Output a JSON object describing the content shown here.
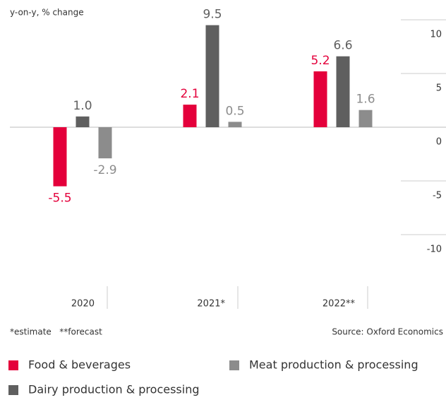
{
  "chart_data": {
    "type": "bar",
    "y_axis_label": "y-on-y, % change",
    "categories": [
      "2020",
      "2021*",
      "2022**"
    ],
    "series": [
      {
        "name": "Food & beverages",
        "color": "#e4003b",
        "values": [
          -5.5,
          2.1,
          5.2
        ],
        "value_labels": [
          "-5.5",
          "2.1",
          "5.2"
        ]
      },
      {
        "name": "Dairy production & processing",
        "color": "#5f5f5f",
        "values": [
          1.0,
          9.5,
          6.6
        ],
        "value_labels": [
          "1.0",
          "9.5",
          "6.6"
        ]
      },
      {
        "name": "Meat production & processing",
        "color": "#8c8c8c",
        "values": [
          -2.9,
          0.5,
          1.6
        ],
        "value_labels": [
          "-2.9",
          "0.5",
          "1.6"
        ]
      }
    ],
    "ylim": [
      -10,
      10
    ],
    "yticks": [
      10,
      5,
      0,
      -5,
      -10
    ],
    "note": "*estimate   **forecast",
    "source": "Source: Oxford Economics"
  }
}
